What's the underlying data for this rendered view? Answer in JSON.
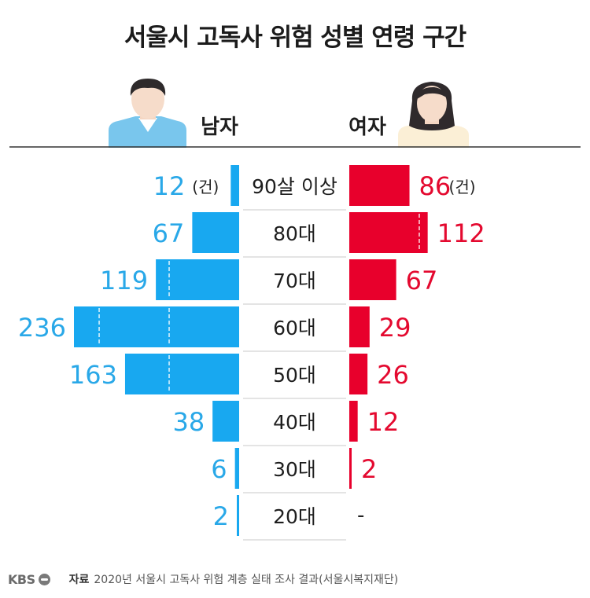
{
  "title": "서울시 고독사 위험 성별 연령 구간",
  "chart_data": {
    "type": "bar",
    "title": "서울시 고독사 위험 성별 연령 구간",
    "orientation": "horizontal-butterfly",
    "categories": [
      "90살 이상",
      "80대",
      "70대",
      "60대",
      "50대",
      "40대",
      "30대",
      "20대"
    ],
    "series": [
      {
        "name": "남자",
        "values": [
          12,
          67,
          119,
          236,
          163,
          38,
          6,
          2
        ],
        "labels": [
          "12",
          "67",
          "119",
          "236",
          "163",
          "38",
          "6",
          "2"
        ],
        "color": "#18a8f0"
      },
      {
        "name": "여자",
        "values": [
          86,
          112,
          67,
          29,
          26,
          12,
          2,
          null
        ],
        "labels": [
          "86",
          "112",
          "67",
          "29",
          "26",
          "12",
          "2",
          "-"
        ],
        "color": "#e8002c"
      }
    ],
    "unit": "(건)",
    "xlim": [
      0,
      236
    ],
    "guide_lines": [
      100,
      200
    ]
  },
  "legend": {
    "male": "남자",
    "female": "여자"
  },
  "footer": {
    "logo": "KBS",
    "source_label": "자료",
    "source_text": "2020년 서울시 고독사 위험 계층 실태 조사 결과(서울시복지재단)"
  },
  "colors": {
    "male": "#18a8f0",
    "female": "#e8002c",
    "male_label": "#29a8e8",
    "female_label": "#e4092f",
    "category_bg": "#ffffff"
  },
  "icons": {
    "male": "man-avatar-icon",
    "female": "woman-avatar-icon"
  }
}
